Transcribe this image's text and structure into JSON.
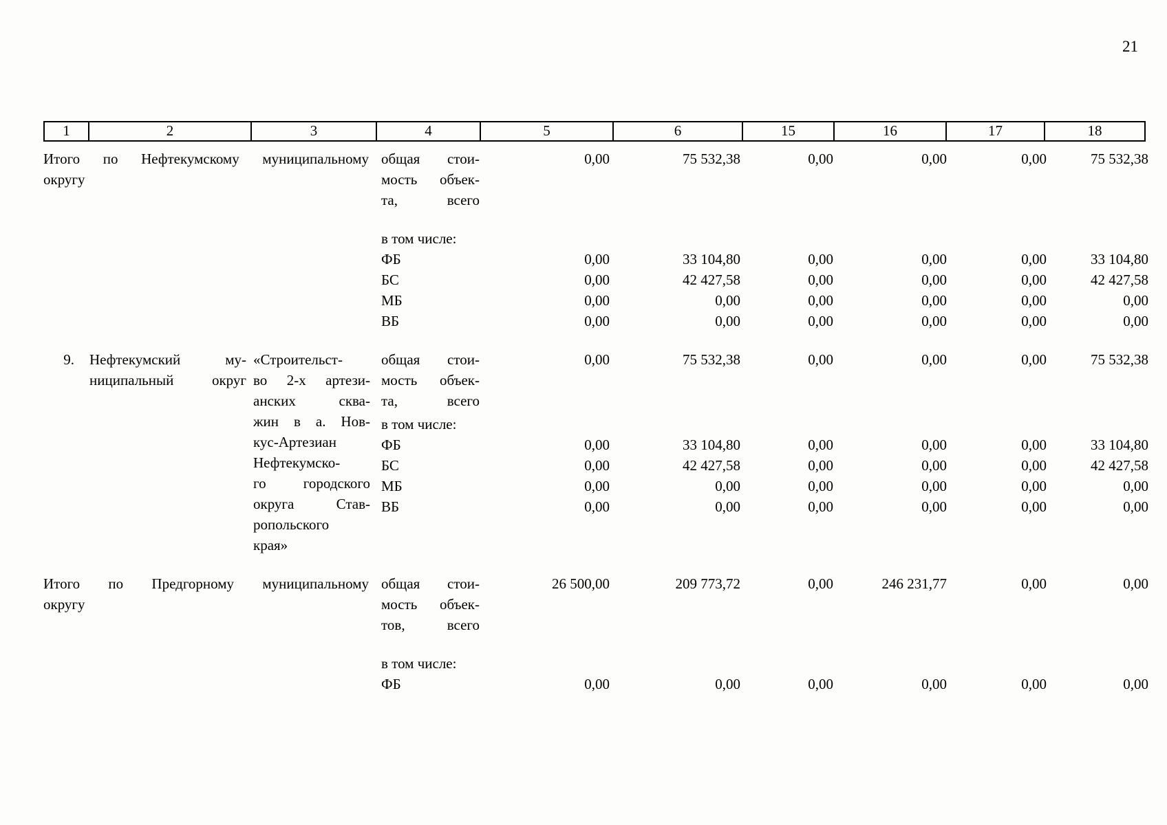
{
  "page_number": "21",
  "table": {
    "columns": [
      "1",
      "2",
      "3",
      "4",
      "5",
      "6",
      "15",
      "16",
      "17",
      "18"
    ],
    "groups": [
      {
        "num": "",
        "title": "Итого по Нефтекумскому муниципальному\nокругу",
        "project": "",
        "rows": [
          {
            "indicator": "общая стои-\nмость объек-\nта, всего",
            "values": [
              "0,00",
              "75 532,38",
              "0,00",
              "0,00",
              "0,00",
              "75 532,38"
            ]
          },
          {
            "indicator": "в том числе:",
            "values": [
              "",
              "",
              "",
              "",
              "",
              ""
            ]
          },
          {
            "indicator": "ФБ",
            "values": [
              "0,00",
              "33 104,80",
              "0,00",
              "0,00",
              "0,00",
              "33 104,80"
            ]
          },
          {
            "indicator": "БС",
            "values": [
              "0,00",
              "42 427,58",
              "0,00",
              "0,00",
              "0,00",
              "42 427,58"
            ]
          },
          {
            "indicator": "МБ",
            "values": [
              "0,00",
              "0,00",
              "0,00",
              "0,00",
              "0,00",
              "0,00"
            ]
          },
          {
            "indicator": "ВБ",
            "values": [
              "0,00",
              "0,00",
              "0,00",
              "0,00",
              "0,00",
              "0,00"
            ]
          }
        ]
      },
      {
        "num": "9.",
        "title": "Нефтекумский му-\nниципальный округ",
        "project": "«Строительст-\nво 2-х артези-\nанских сква-\nжин в а. Нов-\nкус-Артезиан\nНефтекумско-\nго городского\nокруга Став-\nропольского\nкрая»",
        "rows": [
          {
            "indicator": "общая стои-\nмость объек-\nта, всего",
            "values": [
              "0,00",
              "75 532,38",
              "0,00",
              "0,00",
              "0,00",
              "75 532,38"
            ]
          },
          {
            "indicator": "в том числе:",
            "values": [
              "",
              "",
              "",
              "",
              "",
              ""
            ]
          },
          {
            "indicator": "ФБ",
            "values": [
              "0,00",
              "33 104,80",
              "0,00",
              "0,00",
              "0,00",
              "33 104,80"
            ]
          },
          {
            "indicator": "БС",
            "values": [
              "0,00",
              "42 427,58",
              "0,00",
              "0,00",
              "0,00",
              "42 427,58"
            ]
          },
          {
            "indicator": "МБ",
            "values": [
              "0,00",
              "0,00",
              "0,00",
              "0,00",
              "0,00",
              "0,00"
            ]
          },
          {
            "indicator": "ВБ",
            "values": [
              "0,00",
              "0,00",
              "0,00",
              "0,00",
              "0,00",
              "0,00"
            ]
          }
        ]
      },
      {
        "num": "",
        "title": "Итого по Предгорному муниципальному\nокругу",
        "project": "",
        "rows": [
          {
            "indicator": "общая стои-\nмость объек-\nтов, всего",
            "values": [
              "26 500,00",
              "209 773,72",
              "0,00",
              "246 231,77",
              "0,00",
              "0,00"
            ]
          },
          {
            "indicator": "в том числе:",
            "values": [
              "",
              "",
              "",
              "",
              "",
              ""
            ]
          },
          {
            "indicator": "ФБ",
            "values": [
              "0,00",
              "0,00",
              "0,00",
              "0,00",
              "0,00",
              "0,00"
            ]
          }
        ]
      }
    ]
  }
}
